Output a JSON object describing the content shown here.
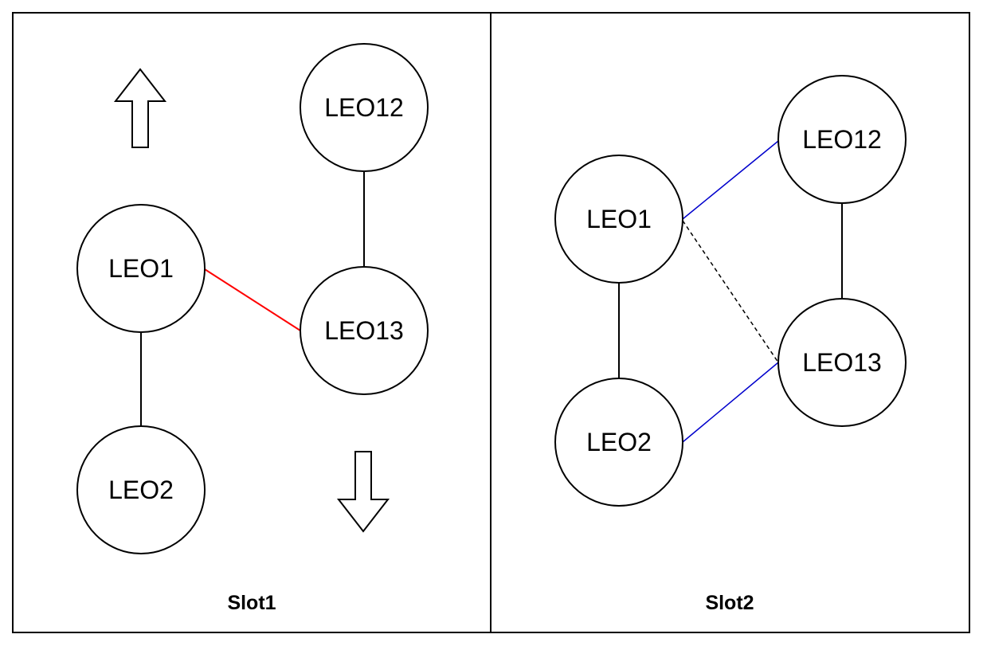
{
  "colors": {
    "stroke": "#000000",
    "link_red": "#ff0000",
    "link_blue": "#0000cc",
    "background": "#ffffff"
  },
  "slot1": {
    "label": "Slot1",
    "nodes": {
      "leo12": "LEO12",
      "leo1": "LEO1",
      "leo13": "LEO13",
      "leo2": "LEO2"
    },
    "arrows": [
      "arrow-up-icon",
      "arrow-down-icon"
    ]
  },
  "slot2": {
    "label": "Slot2",
    "nodes": {
      "leo12": "LEO12",
      "leo1": "LEO1",
      "leo13": "LEO13",
      "leo2": "LEO2"
    }
  }
}
